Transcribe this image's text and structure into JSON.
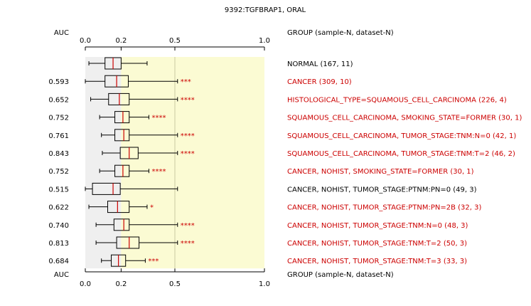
{
  "chart_data": {
    "type": "boxplot",
    "title": "9392:TGFBRAP1, ORAL",
    "auc_header": "AUC",
    "group_header": "GROUP (sample-N, dataset-N)",
    "xlim": [
      0,
      1
    ],
    "xticks": [
      "0.0",
      "0.2",
      "0.5",
      "1.0"
    ],
    "xtick_values": [
      0.0,
      0.2,
      0.5,
      1.0
    ],
    "colors": {
      "normal_text": "#000000",
      "significant_text": "#cc0000",
      "background_left": "#efefef",
      "background_right": "#fbfbd3",
      "median": "#cc0000"
    },
    "rows": [
      {
        "auc": "",
        "group": "NORMAL (167, 11)",
        "stars": "",
        "red": false,
        "whisker_lo": 0.02,
        "q1": 0.11,
        "median": 0.155,
        "q3": 0.2,
        "whisker_hi": 0.345
      },
      {
        "auc": "0.593",
        "group": "CANCER (309, 10)",
        "stars": "***",
        "red": true,
        "whisker_lo": 0.0,
        "q1": 0.11,
        "median": 0.175,
        "q3": 0.24,
        "whisker_hi": 0.515
      },
      {
        "auc": "0.652",
        "group": "HISTOLOGICAL_TYPE=SQUAMOUS_CELL_CARCINOMA (226, 4)",
        "stars": "****",
        "red": true,
        "whisker_lo": 0.03,
        "q1": 0.13,
        "median": 0.19,
        "q3": 0.245,
        "whisker_hi": 0.515
      },
      {
        "auc": "0.752",
        "group": "SQUAMOUS_CELL_CARCINOMA, SMOKING_STATE=FORMER (30, 1)",
        "stars": "****",
        "red": true,
        "whisker_lo": 0.08,
        "q1": 0.165,
        "median": 0.21,
        "q3": 0.245,
        "whisker_hi": 0.355
      },
      {
        "auc": "0.761",
        "group": "SQUAMOUS_CELL_CARCINOMA, TUMOR_STAGE:TNM:N=0 (42, 1)",
        "stars": "****",
        "red": true,
        "whisker_lo": 0.09,
        "q1": 0.165,
        "median": 0.215,
        "q3": 0.245,
        "whisker_hi": 0.515
      },
      {
        "auc": "0.843",
        "group": "SQUAMOUS_CELL_CARCINOMA, TUMOR_STAGE:TNM:T=2 (46, 2)",
        "stars": "****",
        "red": true,
        "whisker_lo": 0.095,
        "q1": 0.195,
        "median": 0.245,
        "q3": 0.295,
        "whisker_hi": 0.515
      },
      {
        "auc": "0.752",
        "group": "CANCER, NOHIST, SMOKING_STATE=FORMER (30, 1)",
        "stars": "****",
        "red": true,
        "whisker_lo": 0.08,
        "q1": 0.165,
        "median": 0.21,
        "q3": 0.245,
        "whisker_hi": 0.355
      },
      {
        "auc": "0.515",
        "group": "CANCER, NOHIST, TUMOR_STAGE:PTNM:PN=0 (49, 3)",
        "stars": "",
        "red": false,
        "whisker_lo": 0.0,
        "q1": 0.04,
        "median": 0.155,
        "q3": 0.195,
        "whisker_hi": 0.515
      },
      {
        "auc": "0.622",
        "group": "CANCER, NOHIST, TUMOR_STAGE:PTNM:PN=2B (32, 3)",
        "stars": "*",
        "red": true,
        "whisker_lo": 0.02,
        "q1": 0.125,
        "median": 0.18,
        "q3": 0.245,
        "whisker_hi": 0.345
      },
      {
        "auc": "0.740",
        "group": "CANCER, NOHIST, TUMOR_STAGE:TNM:N=0 (48, 3)",
        "stars": "****",
        "red": true,
        "whisker_lo": 0.06,
        "q1": 0.16,
        "median": 0.215,
        "q3": 0.245,
        "whisker_hi": 0.515
      },
      {
        "auc": "0.813",
        "group": "CANCER, NOHIST, TUMOR_STAGE:TNM:T=2 (50, 3)",
        "stars": "****",
        "red": true,
        "whisker_lo": 0.06,
        "q1": 0.175,
        "median": 0.245,
        "q3": 0.3,
        "whisker_hi": 0.515
      },
      {
        "auc": "0.684",
        "group": "CANCER, NOHIST, TUMOR_STAGE:TNM:T=3 (33, 3)",
        "stars": "***",
        "red": true,
        "whisker_lo": 0.09,
        "q1": 0.145,
        "median": 0.185,
        "q3": 0.225,
        "whisker_hi": 0.335
      }
    ]
  }
}
